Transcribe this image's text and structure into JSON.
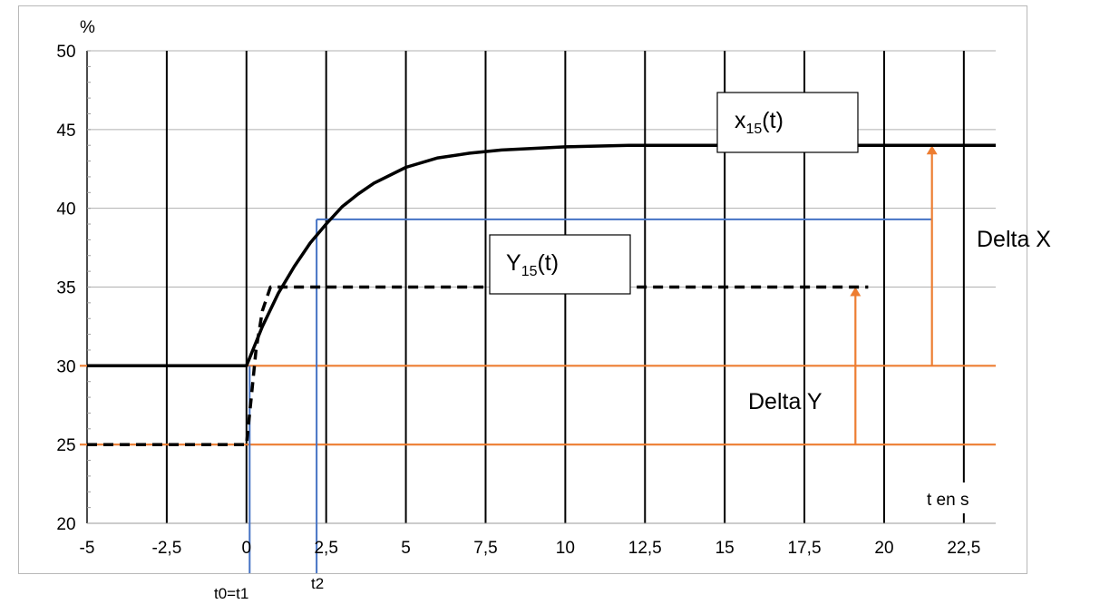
{
  "chart_data": {
    "type": "line",
    "ylabel": "%",
    "xlabel": "t en s",
    "xlim": [
      -5,
      23.5
    ],
    "ylim": [
      20,
      50
    ],
    "x_ticks": [
      "-5",
      "-2,5",
      "0",
      "2,5",
      "5",
      "7,5",
      "10",
      "12,5",
      "15",
      "17,5",
      "20",
      "22,5"
    ],
    "y_ticks": [
      "20",
      "25",
      "30",
      "35",
      "40",
      "45",
      "50"
    ],
    "grid": true,
    "series": [
      {
        "name": "x15(t)",
        "style": "solid",
        "color": "#000000",
        "points": [
          [
            -5,
            30
          ],
          [
            0,
            30
          ],
          [
            0.5,
            32.5
          ],
          [
            1,
            34.6
          ],
          [
            1.5,
            36.3
          ],
          [
            2,
            37.8
          ],
          [
            2.5,
            39
          ],
          [
            3,
            40.1
          ],
          [
            3.5,
            40.9
          ],
          [
            4,
            41.6
          ],
          [
            5,
            42.6
          ],
          [
            6,
            43.2
          ],
          [
            7,
            43.5
          ],
          [
            8,
            43.7
          ],
          [
            10,
            43.9
          ],
          [
            12,
            44
          ],
          [
            23.5,
            44
          ]
        ]
      },
      {
        "name": "Y15(t)",
        "style": "dashed",
        "color": "#000000",
        "points": [
          [
            -5,
            25
          ],
          [
            0,
            25
          ],
          [
            0.15,
            28
          ],
          [
            0.3,
            31
          ],
          [
            0.5,
            33.5
          ],
          [
            0.75,
            35
          ],
          [
            19.5,
            35
          ]
        ]
      }
    ],
    "labels": {
      "x_series_main": "x",
      "x_series_sub": "15",
      "x_series_tail": "(t)",
      "y_series_main": "Y",
      "y_series_sub": "15",
      "y_series_tail": "(t)"
    },
    "annotations": {
      "delta_x": "Delta X",
      "delta_y": "Delta Y",
      "t0": "t0=t1",
      "t2": "t2"
    },
    "reference_lines": {
      "orange_hlines": [
        30,
        25
      ],
      "orange_hline_color": "#ed7d31",
      "blue_color": "#4472c4",
      "blue_hline": 39.3,
      "blue_vline_t1": 0.1,
      "blue_vline_t2": 2.2,
      "delta_x_arrow_x": 21.5,
      "delta_y_arrow_x": 19.1
    }
  }
}
